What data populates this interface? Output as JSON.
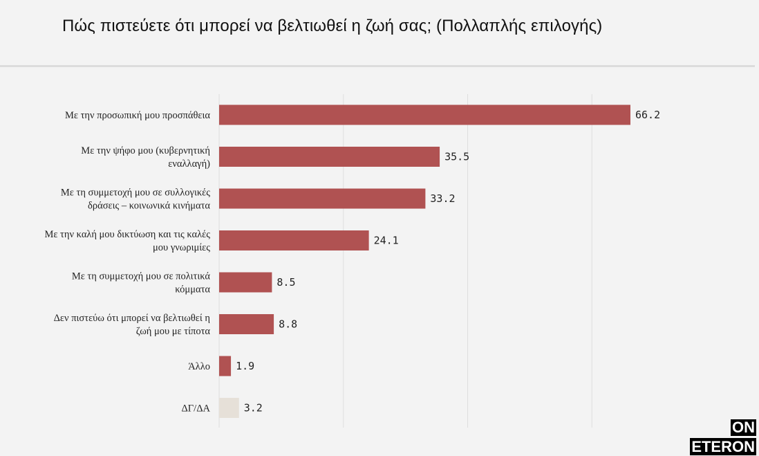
{
  "chart_data": {
    "type": "bar",
    "orientation": "horizontal",
    "title": "Πώς πιστεύετε ότι μπορεί να βελτιωθεί η ζωή σας; (Πολλαπλής επιλογής)",
    "categories": [
      "Με την προσωπική μου προσπάθεια",
      "Με την ψήφο μου (κυβερνητική εναλλαγή)",
      "Με τη συμμετοχή μου σε συλλογικές δράσεις – κοινωνικά κινήματα",
      "Με την καλή μου δικτύωση και τις καλές μου γνωριμίες",
      "Με τη συμμετοχή μου σε πολιτικά κόμματα",
      "Δεν πιστεύω ότι μπορεί να βελτιωθεί η ζωή μου με τίποτα",
      "Άλλο",
      "ΔΓ/ΔΑ"
    ],
    "category_lines": [
      [
        "Με την προσωπική μου προσπάθεια"
      ],
      [
        "Με την ψήφο μου (κυβερνητική",
        "εναλλαγή)"
      ],
      [
        "Με τη συμμετοχή μου σε συλλογικές",
        "δράσεις – κοινωνικά κινήματα"
      ],
      [
        "Με την καλή μου δικτύωση και τις καλές",
        "μου γνωριμίες"
      ],
      [
        "Με τη συμμετοχή μου σε πολιτικά",
        "κόμματα"
      ],
      [
        "Δεν πιστεύω ότι μπορεί να βελτιωθεί η",
        "ζωή μου με τίποτα"
      ],
      [
        "Άλλο"
      ],
      [
        "ΔΓ/ΔΑ"
      ]
    ],
    "values": [
      66.2,
      35.5,
      33.2,
      24.1,
      8.5,
      8.8,
      1.9,
      3.2
    ],
    "value_labels": [
      "66.2",
      "35.5",
      "33.2",
      "24.1",
      "8.5",
      "8.8",
      "1.9",
      "3.2"
    ],
    "bar_colors": [
      "#b05252",
      "#b05252",
      "#b05252",
      "#b05252",
      "#b05252",
      "#b05252",
      "#b05252",
      "#e6e0d8"
    ],
    "xlim": [
      0,
      66.2
    ],
    "gridlines": [
      0,
      20,
      40,
      60
    ],
    "grid": true,
    "legend": "none"
  },
  "brand": {
    "logo_top": "ON",
    "logo_bottom": "ETERON"
  }
}
